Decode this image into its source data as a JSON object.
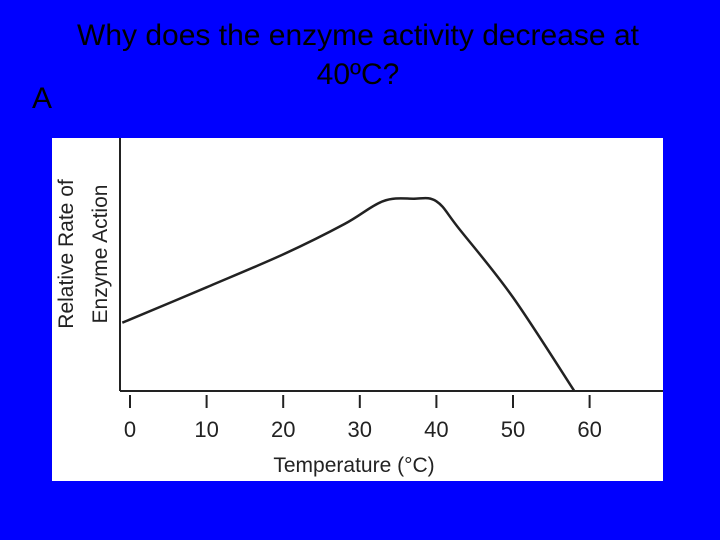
{
  "slide": {
    "title": "Why does the enzyme activity decrease at 40ºC?",
    "label": "A"
  },
  "colors": {
    "background": "#0000ff",
    "chart_background": "#ffffff",
    "line": "#222222"
  },
  "chart_data": {
    "type": "line",
    "title": "",
    "xlabel": "Temperature (°C)",
    "ylabel_lines": [
      "Relative Rate of",
      "Enzyme Action"
    ],
    "xticks": [
      0,
      10,
      20,
      30,
      40,
      50,
      60
    ],
    "xlim": [
      0,
      70
    ],
    "ylim": [
      0,
      1
    ],
    "grid": false,
    "series": [
      {
        "x": [
          -1,
          10,
          20,
          28,
          33,
          37,
          40,
          43,
          50,
          58
        ],
        "y": [
          0.27,
          0.41,
          0.54,
          0.66,
          0.75,
          0.76,
          0.75,
          0.64,
          0.37,
          0.0
        ]
      }
    ]
  }
}
